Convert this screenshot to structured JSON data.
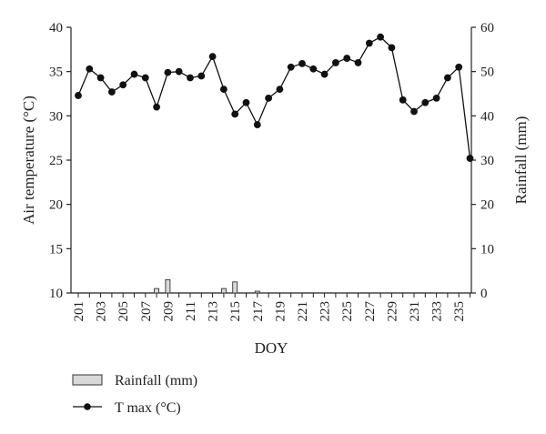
{
  "chart_data": {
    "type": "line",
    "xlabel": "DOY",
    "ylabel_left": "Air temperature (°C)",
    "ylabel_right": "Rainfall (mm)",
    "x": [
      201,
      202,
      203,
      204,
      205,
      206,
      207,
      208,
      209,
      210,
      211,
      212,
      213,
      214,
      215,
      216,
      217,
      218,
      219,
      220,
      221,
      222,
      223,
      224,
      225,
      226,
      227,
      228,
      229,
      230,
      231,
      232,
      233,
      234,
      235,
      236
    ],
    "x_tick_labels": [
      "201",
      "203",
      "205",
      "207",
      "209",
      "211",
      "213",
      "215",
      "217",
      "219",
      "221",
      "223",
      "225",
      "227",
      "229",
      "231",
      "233",
      "235"
    ],
    "ylim_left": [
      10,
      40
    ],
    "yticks_left": [
      "10",
      "15",
      "20",
      "25",
      "30",
      "35",
      "40"
    ],
    "ylim_right": [
      0,
      60
    ],
    "yticks_right": [
      "0",
      "10",
      "20",
      "30",
      "40",
      "50",
      "60"
    ],
    "grid": false,
    "legend_position": "bottom-left",
    "series": [
      {
        "name": "Rainfall (mm)",
        "type": "bar",
        "axis": "right",
        "color": "#d9d9d9",
        "x": [
          208,
          209,
          214,
          215,
          217
        ],
        "values": [
          1.0,
          3.0,
          1.0,
          2.5,
          0.4
        ]
      },
      {
        "name": "T max (°C)",
        "type": "line",
        "axis": "left",
        "color": "#111111",
        "values": [
          32.3,
          35.3,
          34.3,
          32.7,
          33.5,
          34.7,
          34.3,
          31.0,
          34.9,
          35.0,
          34.3,
          34.5,
          36.7,
          33.0,
          30.2,
          31.5,
          29.0,
          32.0,
          33.0,
          35.5,
          35.9,
          35.3,
          34.7,
          36.0,
          36.5,
          36.0,
          38.2,
          38.9,
          37.7,
          31.8,
          30.5,
          31.5,
          32.0,
          34.3,
          35.5,
          25.2
        ]
      }
    ]
  }
}
